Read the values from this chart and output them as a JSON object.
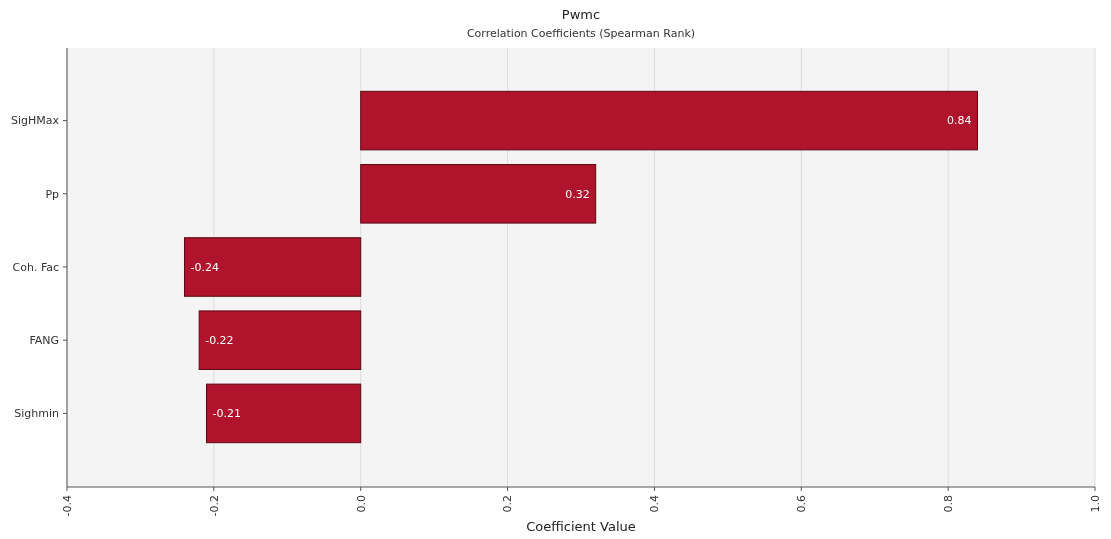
{
  "chart_data": {
    "type": "bar",
    "orientation": "horizontal",
    "title": "Pwmc",
    "subtitle": "Correlation Coefficients (Spearman Rank)",
    "xlabel": "Coefficient Value",
    "categories": [
      "SigHMax",
      "Pp",
      "Coh. Fac",
      "FANG",
      "Sighmin"
    ],
    "values": [
      0.84,
      0.32,
      -0.24,
      -0.22,
      -0.21
    ],
    "color": "#b0142c",
    "xlim": [
      -0.4,
      1.0
    ],
    "xticks": [
      {
        "value": -0.4,
        "label": "-0.4"
      },
      {
        "value": -0.2,
        "label": "-0.2"
      },
      {
        "value": 0,
        "label": "0.0"
      },
      {
        "value": 0.2,
        "label": "0.2"
      },
      {
        "value": 0.4,
        "label": "0.4"
      },
      {
        "value": 0.6,
        "label": "0.6"
      },
      {
        "value": 0.8,
        "label": "0.8"
      },
      {
        "value": 1.0,
        "label": "1.0"
      }
    ],
    "grid": "x",
    "data_labels": true
  }
}
